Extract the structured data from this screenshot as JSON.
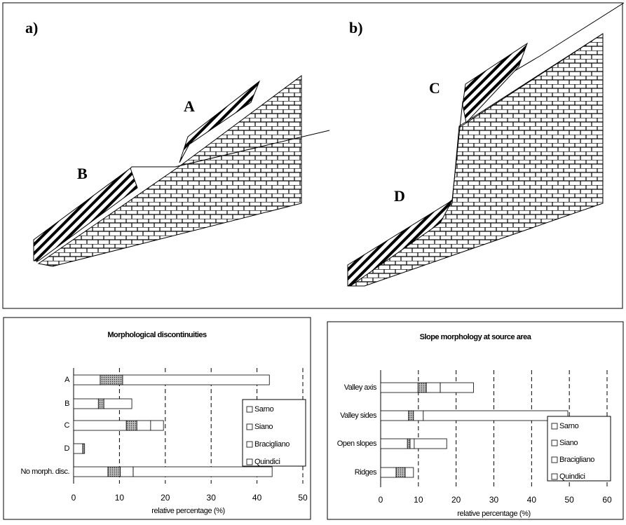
{
  "diagram": {
    "panels": [
      {
        "label": "a)",
        "features": [
          "A",
          "B"
        ]
      },
      {
        "label": "b)",
        "features": [
          "C",
          "D"
        ]
      }
    ]
  },
  "chart_data": [
    {
      "type": "stacked-bar-horizontal",
      "title": "Morphological discontinuities",
      "x_label": "relative percentage (%)",
      "categories": [
        "A",
        "B",
        "C",
        "D",
        "No morph. disc."
      ],
      "series": [
        {
          "name": "Sarno",
          "color": "#ffffff",
          "pattern": "none",
          "values": [
            5.8,
            5.4,
            11.5,
            2,
            7.5
          ]
        },
        {
          "name": "Siano",
          "color": "#ffffff",
          "pattern": "dots",
          "values": [
            4.9,
            1.2,
            2.3,
            0.4,
            2.7
          ]
        },
        {
          "name": "Bracigliano",
          "color": "#ffffff",
          "pattern": "none",
          "values": [
            0,
            0,
            3.0,
            0,
            2.8
          ]
        },
        {
          "name": "Quindici",
          "color": "#ffffff",
          "pattern": "none",
          "values": [
            32,
            6.1,
            2.8,
            0,
            30.3
          ]
        }
      ],
      "xlim": [
        0,
        50
      ],
      "xticks": [
        0,
        10,
        20,
        30,
        40,
        50
      ],
      "grid": true,
      "legend": "right"
    },
    {
      "type": "stacked-bar-horizontal",
      "title": "Slope morphology at source area",
      "x_label": "relative percentage (%)",
      "categories": [
        "Valley axis",
        "Valley sides",
        "Open slopes",
        "Ridges"
      ],
      "series": [
        {
          "name": "Sarno",
          "color": "#ffffff",
          "pattern": "none",
          "values": [
            9.9,
            7.4,
            7.1,
            4.1
          ]
        },
        {
          "name": "Siano",
          "color": "#ffffff",
          "pattern": "dots",
          "values": [
            2.2,
            1.3,
            0.7,
            2.4
          ]
        },
        {
          "name": "Bracigliano",
          "color": "#ffffff",
          "pattern": "none",
          "values": [
            3.7,
            2.6,
            1.1,
            2.2
          ]
        },
        {
          "name": "Quindici",
          "color": "#ffffff",
          "pattern": "none",
          "values": [
            8.8,
            38.3,
            8.6,
            0
          ]
        }
      ],
      "xlim": [
        0,
        60
      ],
      "xticks": [
        0,
        10,
        20,
        30,
        40,
        50,
        60
      ],
      "grid": true,
      "legend": "right"
    }
  ]
}
